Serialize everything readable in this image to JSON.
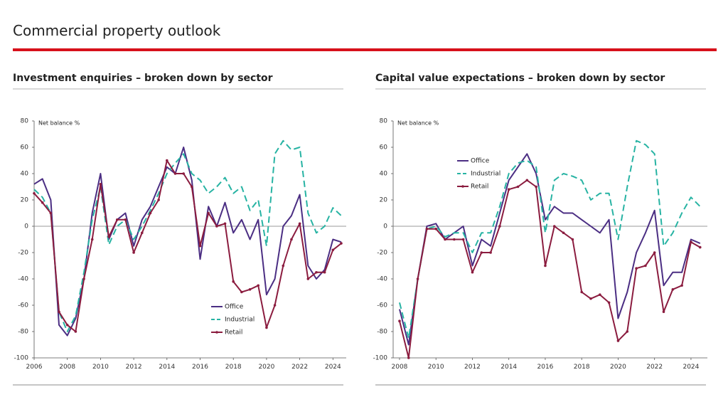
{
  "header": {
    "title": "Commercial property outlook"
  },
  "chart_data": [
    {
      "type": "line",
      "title": "Investment enquiries – broken down by sector",
      "ylabel": "Net balance %",
      "x": [
        2006,
        2006.5,
        2007,
        2007.5,
        2008,
        2008.5,
        2009,
        2009.5,
        2010,
        2010.5,
        2011,
        2011.5,
        2012,
        2012.5,
        2013,
        2013.5,
        2014,
        2014.5,
        2015,
        2015.5,
        2016,
        2016.5,
        2017,
        2017.5,
        2018,
        2018.5,
        2019,
        2019.5,
        2020,
        2020.5,
        2021,
        2021.5,
        2022,
        2022.5,
        2023,
        2023.5,
        2024,
        2024.5
      ],
      "xlim": [
        2006,
        2024.8
      ],
      "xticks": [
        2006,
        2008,
        2010,
        2012,
        2014,
        2016,
        2018,
        2020,
        2022,
        2024
      ],
      "ylim": [
        -100,
        80
      ],
      "yticks": [
        -100,
        -80,
        -60,
        -40,
        -20,
        0,
        20,
        40,
        60,
        80
      ],
      "legend": "lower right",
      "series": [
        {
          "name": "Office",
          "color": "#4b2e83",
          "style": "solid",
          "values": [
            32,
            36,
            20,
            -75,
            -83,
            -70,
            -40,
            10,
            40,
            -10,
            5,
            10,
            -15,
            5,
            15,
            30,
            45,
            40,
            60,
            35,
            -25,
            15,
            0,
            18,
            -5,
            5,
            -10,
            5,
            -52,
            -40,
            0,
            8,
            24,
            -30,
            -40,
            -33,
            -10,
            -12
          ]
        },
        {
          "name": "Industrial",
          "color": "#27b3a3",
          "style": "dashed",
          "values": [
            28,
            22,
            10,
            -65,
            -80,
            -68,
            -35,
            5,
            30,
            -14,
            0,
            5,
            -10,
            0,
            12,
            25,
            40,
            48,
            55,
            40,
            35,
            25,
            30,
            37,
            25,
            30,
            12,
            20,
            -15,
            55,
            65,
            58,
            60,
            10,
            -5,
            0,
            14,
            8
          ]
        },
        {
          "name": "Retail",
          "color": "#8b1c3f",
          "style": "markers",
          "values": [
            25,
            18,
            10,
            -65,
            -75,
            -80,
            -40,
            -10,
            32,
            -8,
            5,
            5,
            -20,
            -5,
            10,
            20,
            50,
            40,
            40,
            30,
            -15,
            10,
            0,
            2,
            -42,
            -50,
            -48,
            -45,
            -77,
            -60,
            -30,
            -10,
            2,
            -40,
            -35,
            -35,
            -18,
            -13
          ]
        }
      ]
    },
    {
      "type": "line",
      "title": "Capital value expectations – broken down by sector",
      "ylabel": "Net balance %",
      "x": [
        2008,
        2008.5,
        2009,
        2009.5,
        2010,
        2010.5,
        2011,
        2011.5,
        2012,
        2012.5,
        2013,
        2013.5,
        2014,
        2014.5,
        2015,
        2015.5,
        2016,
        2016.5,
        2017,
        2017.5,
        2018,
        2018.5,
        2019,
        2019.5,
        2020,
        2020.5,
        2021,
        2021.5,
        2022,
        2022.5,
        2023,
        2023.5,
        2024,
        2024.5
      ],
      "xlim": [
        2007.65,
        2024.9
      ],
      "xticks": [
        2008,
        2010,
        2012,
        2014,
        2016,
        2018,
        2020,
        2022,
        2024
      ],
      "ylim": [
        -100,
        80
      ],
      "yticks": [
        -100,
        -80,
        -60,
        -40,
        -20,
        0,
        20,
        40,
        60,
        80
      ],
      "legend": "upper left",
      "series": [
        {
          "name": "Office",
          "color": "#4b2e83",
          "style": "solid",
          "values": [
            -63,
            -90,
            -40,
            0,
            2,
            -10,
            -5,
            0,
            -30,
            -10,
            -15,
            10,
            35,
            45,
            55,
            40,
            5,
            15,
            10,
            10,
            5,
            0,
            -5,
            5,
            -70,
            -50,
            -20,
            -5,
            12,
            -45,
            -35,
            -35,
            -10,
            -13
          ]
        },
        {
          "name": "Industrial",
          "color": "#27b3a3",
          "style": "dashed",
          "values": [
            -58,
            -85,
            -40,
            -2,
            0,
            -8,
            -5,
            -5,
            -20,
            -5,
            -5,
            15,
            40,
            48,
            50,
            45,
            -5,
            35,
            40,
            38,
            35,
            20,
            25,
            25,
            -10,
            30,
            65,
            62,
            55,
            -15,
            -5,
            10,
            22,
            15
          ]
        },
        {
          "name": "Retail",
          "color": "#8b1c3f",
          "style": "markers",
          "values": [
            -72,
            -100,
            -40,
            -2,
            -2,
            -10,
            -10,
            -10,
            -35,
            -20,
            -20,
            0,
            28,
            30,
            35,
            30,
            -30,
            0,
            -5,
            -10,
            -50,
            -55,
            -52,
            -58,
            -87,
            -80,
            -32,
            -30,
            -20,
            -65,
            -48,
            -45,
            -12,
            -16
          ]
        }
      ]
    }
  ]
}
